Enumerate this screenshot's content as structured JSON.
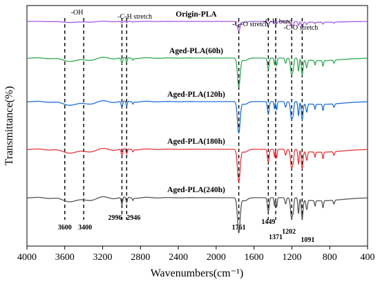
{
  "chart_data": {
    "type": "line",
    "xlabel": "Wavenumbers(cm⁻¹)",
    "ylabel": "Transmittance(%)",
    "xlim": [
      4000,
      400
    ],
    "x_reversed": true,
    "x_ticks": [
      4000,
      3600,
      3200,
      2800,
      2400,
      2000,
      1600,
      1200,
      800,
      400
    ],
    "grid": false,
    "series": [
      {
        "name": "Origin-PLA",
        "color": "#a159e8",
        "scale": 0.3
      },
      {
        "name": "Aged-PLA(60h)",
        "color": "#2faa55",
        "scale": 0.92
      },
      {
        "name": "Aged-PLA(120h)",
        "color": "#1f6fd6",
        "scale": 1.0
      },
      {
        "name": "Aged-PLA(180h)",
        "color": "#e8373c",
        "scale": 1.05
      },
      {
        "name": "Aged-PLA(240h)",
        "color": "#555555",
        "scale": 1.12
      }
    ],
    "peaks": [
      {
        "x": 3600,
        "label": "3600"
      },
      {
        "x": 3400,
        "label": "3400"
      },
      {
        "x": 2996,
        "label": "2996"
      },
      {
        "x": 2946,
        "label": "2946"
      },
      {
        "x": 1761,
        "label": "1761"
      },
      {
        "x": 1449,
        "label": "1449"
      },
      {
        "x": 1371,
        "label": "1371"
      },
      {
        "x": 1202,
        "label": "1202"
      },
      {
        "x": 1091,
        "label": "1091"
      }
    ],
    "annotations": [
      {
        "text": "-OH",
        "x": 3470
      },
      {
        "text": "-C-H stretch",
        "x": 2860
      },
      {
        "text": "-C=O stretch",
        "x": 1640
      },
      {
        "text": "-C-H bend",
        "x": 1350
      },
      {
        "text": "-C-O stretch",
        "x": 1105
      }
    ]
  }
}
